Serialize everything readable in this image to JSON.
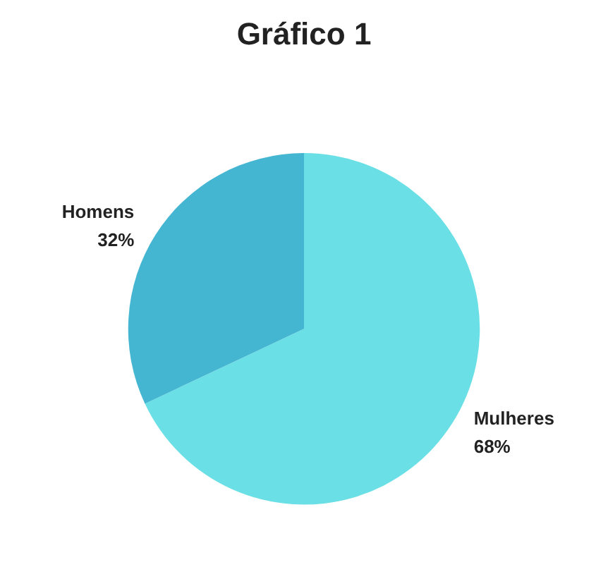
{
  "chart_data": {
    "type": "pie",
    "title": "Gráfico 1",
    "categories": [
      "Mulheres",
      "Homens"
    ],
    "values": [
      68,
      32
    ],
    "value_labels": [
      "68%",
      "32%"
    ],
    "colors": [
      "#6ae0e6",
      "#45b6d2"
    ],
    "legend": false
  }
}
